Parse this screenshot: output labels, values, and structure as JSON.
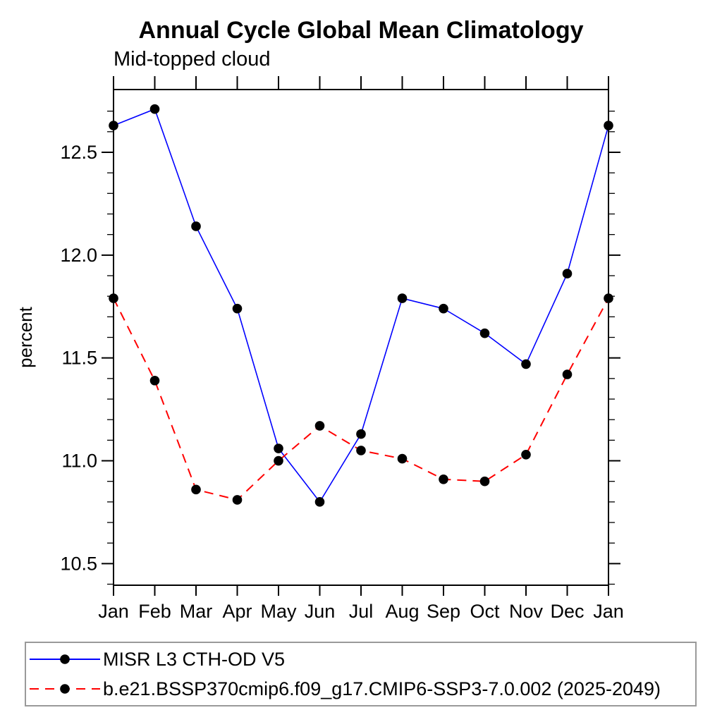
{
  "header": {
    "title": "Annual Cycle Global Mean Climatology",
    "subtitle": "Mid-topped cloud"
  },
  "chart_data": {
    "type": "line",
    "title": "Annual Cycle Global Mean Climatology",
    "subtitle": "Mid-topped cloud",
    "xlabel": "",
    "ylabel": "percent",
    "categories": [
      "Jan",
      "Feb",
      "Mar",
      "Apr",
      "May",
      "Jun",
      "Jul",
      "Aug",
      "Sep",
      "Oct",
      "Nov",
      "Dec",
      "Jan"
    ],
    "series": [
      {
        "name": "MISR L3 CTH-OD V5",
        "line_color": "#0000ff",
        "line_style": "solid",
        "marker": "filled-circle",
        "marker_color": "#000000",
        "values": [
          12.63,
          12.71,
          12.14,
          11.74,
          11.06,
          10.8,
          11.13,
          11.79,
          11.74,
          11.62,
          11.47,
          11.91,
          12.63
        ]
      },
      {
        "name": "b.e21.BSSP370cmip6.f09_g17.CMIP6-SSP3-7.0.002 (2025-2049)",
        "line_color": "#ff0000",
        "line_style": "dashed",
        "marker": "filled-circle",
        "marker_color": "#000000",
        "values": [
          11.79,
          11.39,
          10.86,
          10.81,
          11.0,
          11.17,
          11.05,
          11.01,
          10.91,
          10.9,
          11.03,
          11.42,
          11.79
        ]
      }
    ],
    "ylim": [
      10.395,
      12.805
    ],
    "yticks": [
      10.5,
      11.0,
      11.5,
      12.0,
      12.5
    ],
    "ytick_labels": [
      "10.5",
      "11.0",
      "11.5",
      "12.0",
      "12.5"
    ],
    "y_minor_tick_step": 0.1,
    "grid": false,
    "frame": "box-with-outward-ticks",
    "legend_position": "bottom-left-box",
    "axis_color": "#000000",
    "text_color": "#000000",
    "legend_border_color": "#9a9a9a"
  }
}
